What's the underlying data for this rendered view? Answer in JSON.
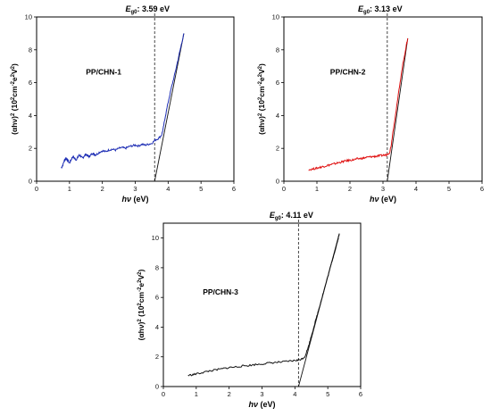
{
  "figure": {
    "ylabel_main": "(αhν)",
    "ylabel_sup1": "2",
    "ylabel_mid": " (10",
    "ylabel_sup2": "2",
    "ylabel_mid2": "cm",
    "ylabel_sup3": "-2",
    "ylabel_mid3": "e",
    "ylabel_sup4": "2",
    "ylabel_mid4": "V",
    "ylabel_sup5": "2",
    "ylabel_end": ")",
    "xlabel_main": "hν",
    "xlabel_unit": " (eV)",
    "eg_prefix": "E",
    "eg_sub": "g0",
    "eg_colon": ":"
  },
  "chart_data": [
    {
      "type": "line",
      "sample": "PP/CHN-1",
      "eg_value": "3.59 eV",
      "eg": 3.59,
      "color": "#1f2fb5",
      "xlim": [
        0,
        6
      ],
      "ylim": [
        0,
        10
      ],
      "xticks": [
        "0",
        "1",
        "2",
        "3",
        "4",
        "5",
        "6"
      ],
      "yticks": [
        "0",
        "2",
        "4",
        "6",
        "8",
        "10"
      ],
      "fit_line": {
        "x": [
          3.59,
          4.48
        ],
        "y": [
          0,
          9.0
        ]
      },
      "series": [
        {
          "x": [
            0.75,
            0.8,
            0.85,
            0.9,
            0.95,
            1.0,
            1.05,
            1.1,
            1.15,
            1.2,
            1.25,
            1.3,
            1.35,
            1.4,
            1.45,
            1.5,
            1.55,
            1.6,
            1.65,
            1.7,
            1.75,
            1.8,
            1.9,
            2.0,
            2.1,
            2.2,
            2.3,
            2.4,
            2.5,
            2.6,
            2.7,
            2.8,
            2.9,
            3.0,
            3.1,
            3.2,
            3.3,
            3.4,
            3.5,
            3.6,
            3.7,
            3.8,
            3.85,
            3.9,
            4.0,
            4.1,
            4.2,
            4.3,
            4.4,
            4.48
          ],
          "y": [
            0.8,
            1.0,
            1.3,
            1.4,
            1.25,
            1.1,
            1.3,
            1.5,
            1.4,
            1.3,
            1.45,
            1.6,
            1.5,
            1.4,
            1.55,
            1.65,
            1.55,
            1.5,
            1.6,
            1.7,
            1.65,
            1.6,
            1.75,
            1.85,
            1.8,
            1.9,
            1.95,
            1.9,
            2.0,
            2.05,
            2.0,
            2.1,
            2.15,
            2.2,
            2.15,
            2.25,
            2.2,
            2.25,
            2.3,
            2.5,
            2.6,
            2.8,
            3.2,
            3.8,
            4.8,
            5.7,
            6.5,
            7.4,
            8.3,
            9.0
          ]
        }
      ]
    },
    {
      "type": "line",
      "sample": "PP/CHN-2",
      "eg_value": "3.13 eV",
      "eg": 3.13,
      "color": "#e01010",
      "xlim": [
        0,
        6
      ],
      "ylim": [
        0,
        10
      ],
      "xticks": [
        "0",
        "1",
        "2",
        "3",
        "4",
        "5",
        "6"
      ],
      "yticks": [
        "0",
        "2",
        "4",
        "6",
        "8",
        "10"
      ],
      "fit_line": {
        "x": [
          3.13,
          3.75
        ],
        "y": [
          0,
          8.7
        ]
      },
      "series": [
        {
          "x": [
            0.75,
            0.9,
            1.0,
            1.1,
            1.2,
            1.3,
            1.4,
            1.5,
            1.6,
            1.7,
            1.8,
            1.9,
            2.0,
            2.1,
            2.2,
            2.3,
            2.4,
            2.5,
            2.6,
            2.7,
            2.8,
            2.9,
            3.0,
            3.1,
            3.2,
            3.25,
            3.3,
            3.4,
            3.5,
            3.6,
            3.7,
            3.75
          ],
          "y": [
            0.7,
            0.75,
            0.8,
            0.85,
            0.9,
            0.95,
            1.0,
            1.05,
            1.1,
            1.15,
            1.2,
            1.25,
            1.28,
            1.3,
            1.35,
            1.38,
            1.4,
            1.45,
            1.48,
            1.5,
            1.52,
            1.55,
            1.58,
            1.6,
            1.75,
            2.2,
            3.0,
            4.3,
            5.8,
            7.1,
            8.2,
            8.7
          ]
        }
      ]
    },
    {
      "type": "line",
      "sample": "PP/CHN-3",
      "eg_value": "4.11 eV",
      "eg": 4.11,
      "color": "#111111",
      "xlim": [
        0,
        6
      ],
      "ylim": [
        0,
        11
      ],
      "xticks": [
        "0",
        "1",
        "2",
        "3",
        "4",
        "5",
        "6"
      ],
      "yticks": [
        "0",
        "2",
        "4",
        "6",
        "8",
        "10"
      ],
      "fit_line": {
        "x": [
          4.11,
          5.35
        ],
        "y": [
          0,
          10.3
        ]
      },
      "series": [
        {
          "x": [
            0.75,
            0.9,
            1.0,
            1.2,
            1.4,
            1.6,
            1.8,
            2.0,
            2.2,
            2.4,
            2.6,
            2.8,
            3.0,
            3.2,
            3.4,
            3.6,
            3.8,
            4.0,
            4.1,
            4.2,
            4.3,
            4.4,
            4.5,
            4.6,
            4.7,
            4.8,
            4.9,
            5.0,
            5.1,
            5.2,
            5.3,
            5.35
          ],
          "y": [
            0.75,
            0.8,
            0.85,
            0.95,
            1.05,
            1.12,
            1.2,
            1.28,
            1.32,
            1.38,
            1.42,
            1.48,
            1.52,
            1.58,
            1.62,
            1.65,
            1.7,
            1.75,
            1.78,
            1.85,
            2.0,
            2.6,
            3.4,
            4.2,
            5.0,
            5.8,
            6.6,
            7.4,
            8.2,
            9.0,
            9.8,
            10.3
          ]
        }
      ]
    }
  ]
}
